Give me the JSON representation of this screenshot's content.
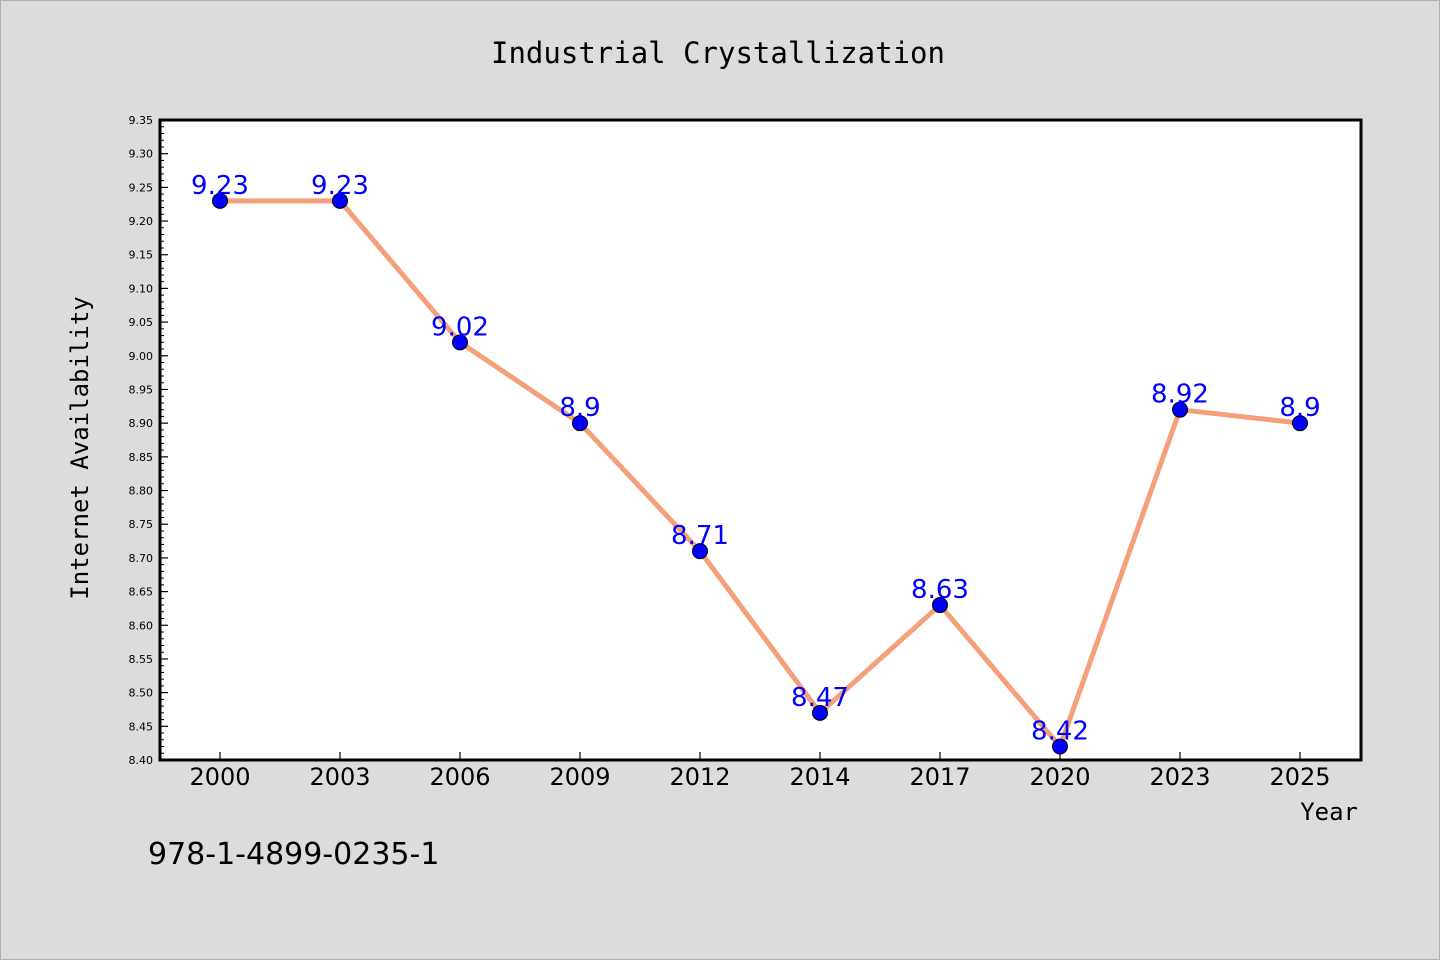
{
  "chart_data": {
    "type": "line",
    "title": "Industrial Crystallization",
    "xlabel": "Year",
    "ylabel": "Internet Availability",
    "categories": [
      "2000",
      "2003",
      "2006",
      "2009",
      "2012",
      "2014",
      "2017",
      "2020",
      "2023",
      "2025"
    ],
    "values": [
      9.23,
      9.23,
      9.02,
      8.9,
      8.71,
      8.47,
      8.63,
      8.42,
      8.92,
      8.9
    ],
    "data_labels": [
      "9.23",
      "9.23",
      "9.02",
      "8.9",
      "8.71",
      "8.47",
      "8.63",
      "8.42",
      "8.92",
      "8.9"
    ],
    "ylim": [
      8.4,
      9.35
    ],
    "yticks": [
      "8.40",
      "8.45",
      "8.50",
      "8.55",
      "8.60",
      "8.65",
      "8.70",
      "8.75",
      "8.80",
      "8.85",
      "8.90",
      "8.95",
      "9.00",
      "9.05",
      "9.10",
      "9.15",
      "9.20",
      "9.25",
      "9.30",
      "9.35"
    ],
    "grid": false,
    "line_color": "#f4a07a",
    "marker_color": "#0000ff",
    "label_color": "#0000ff"
  },
  "footer_code": "978-1-4899-0235-1"
}
